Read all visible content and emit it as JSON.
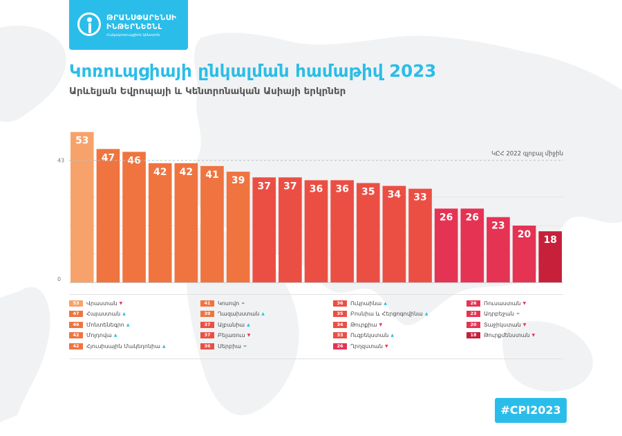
{
  "logo": {
    "line1": "ԹՐԱՆՍՓԱՐԵՆՍԻ",
    "line2": "ԻՆԹԵՐՆԵՇՆԼ",
    "line3": "Հակակոռուպցիոն կենտրոն"
  },
  "title": "Կոռուպցիայի ընկալման համաթիվ 2023",
  "subtitle": "Արևելյան Եվրոպայի և Կենտրոնական Ասիայի երկրներ",
  "hashtag": "#CPI2023",
  "colors": {
    "accent": "#2bbde9",
    "bar_light": "#f8a26b",
    "bar_orange": "#ef7440",
    "bar_coral": "#eb4f44",
    "bar_crimson": "#e53354",
    "bar_darkred": "#c6203a",
    "reference_line": "#bdbdbd"
  },
  "chart_data": {
    "type": "bar",
    "title": "Կոռուպցիայի ընկալման համաթիվ 2023",
    "subtitle": "Արևելյան Եվրոպայի և Կենտրոնական Ասիայի երկրներ",
    "xlabel": "",
    "ylabel": "",
    "ylim": [
      0,
      60
    ],
    "yticks": [
      0,
      43
    ],
    "grid": true,
    "reference_line": {
      "value": 43,
      "label": "ԿԸՀ 2022 գլոբալ միջին"
    },
    "categories": [
      "Վրաստան",
      "Հայաստան",
      "Մոնտենեգրո",
      "Մոլդովա",
      "Հյուսիսային Մակեդոնիա",
      "Կոսովո",
      "Ղազախստան",
      "Ալբանիա",
      "Բելառուս",
      "Սերբիա",
      "Ուկրաինա",
      "Բոսնիա և Հերցոգովինա",
      "Թուրքիա",
      "Ուզբեկստան",
      "Ղրղզստան",
      "Ռուսաստան",
      "Ադրբեջան",
      "Տաջիկստան",
      "Թուրքմենստան"
    ],
    "values": [
      53,
      47,
      46,
      42,
      42,
      41,
      39,
      37,
      37,
      36,
      36,
      35,
      34,
      33,
      26,
      26,
      23,
      20,
      18
    ],
    "bar_labels": [
      "53",
      "47",
      "46",
      "42",
      "42",
      "41",
      "39",
      "37",
      "37",
      "36",
      "36",
      "35",
      "34",
      "33",
      "26",
      "26",
      "23",
      "20",
      "18"
    ],
    "legend": {
      "columns": [
        [
          {
            "score": "53",
            "name": "Վրաստան",
            "mark": "down",
            "color": "#f8a26b"
          },
          {
            "score": "47",
            "name": "Հայաստան",
            "mark": "up",
            "color": "#ef7440"
          },
          {
            "score": "46",
            "name": "Մոնտենեգրո",
            "mark": "up",
            "color": "#ef7440"
          },
          {
            "score": "42",
            "name": "Մոլդովա",
            "mark": "up",
            "color": "#ef7440"
          },
          {
            "score": "42",
            "name": "Հյուսիսային Մակեդոնիա",
            "mark": "up",
            "color": "#ef7440"
          }
        ],
        [
          {
            "score": "41",
            "name": "Կոսովո",
            "mark": "same",
            "color": "#ef7440"
          },
          {
            "score": "39",
            "name": "Ղազախստան",
            "mark": "up",
            "color": "#ef7440"
          },
          {
            "score": "37",
            "name": "Ալբանիա",
            "mark": "up",
            "color": "#eb4f44"
          },
          {
            "score": "37",
            "name": "Բելառուս",
            "mark": "down",
            "color": "#eb4f44"
          },
          {
            "score": "36",
            "name": "Սերբիա",
            "mark": "same",
            "color": "#eb4f44"
          }
        ],
        [
          {
            "score": "36",
            "name": "Ուկրաինա",
            "mark": "up",
            "color": "#eb4f44"
          },
          {
            "score": "35",
            "name": "Բոսնիա և Հերցոգովինա",
            "mark": "up",
            "color": "#eb4f44"
          },
          {
            "score": "34",
            "name": "Թուրքիա",
            "mark": "down",
            "color": "#eb4f44"
          },
          {
            "score": "33",
            "name": "Ուզբեկստան",
            "mark": "up",
            "color": "#eb4f44"
          },
          {
            "score": "26",
            "name": "Ղրղզստան",
            "mark": "down",
            "color": "#e53354"
          }
        ],
        [
          {
            "score": "26",
            "name": "Ռուսաստան",
            "mark": "down",
            "color": "#e53354"
          },
          {
            "score": "23",
            "name": "Ադրբեջան",
            "mark": "same",
            "color": "#e53354"
          },
          {
            "score": "20",
            "name": "Տաջիկստան",
            "mark": "down",
            "color": "#e53354"
          },
          {
            "score": "18",
            "name": "Թուրքմենստան",
            "mark": "down",
            "color": "#c6203a"
          }
        ]
      ]
    }
  }
}
